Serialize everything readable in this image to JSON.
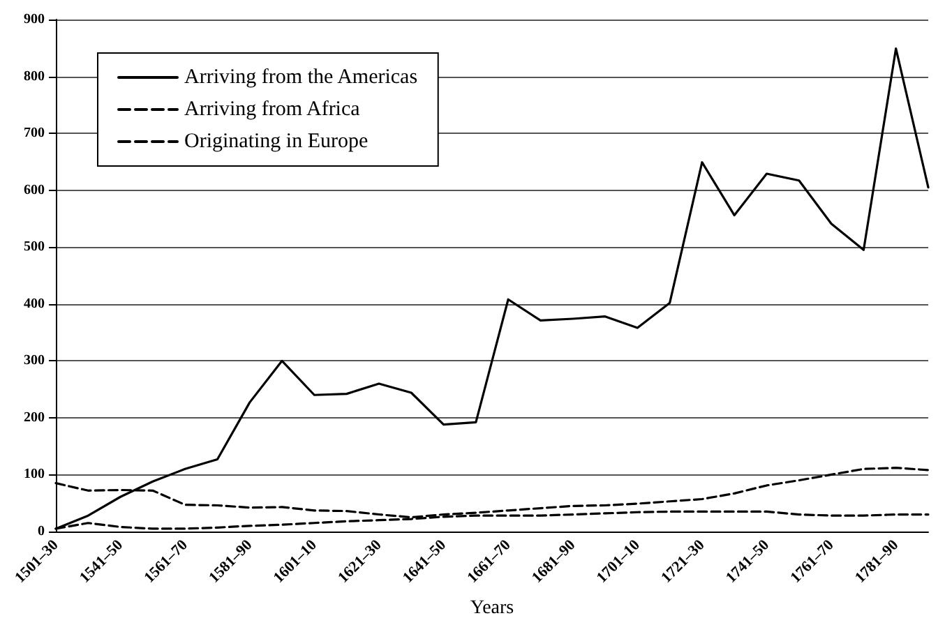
{
  "chart_data": {
    "type": "line",
    "xlabel": "Years",
    "categories": [
      "1501–30",
      null,
      "1541–50",
      null,
      "1561–70",
      null,
      "1581–90",
      null,
      "1601–10",
      null,
      "1621–30",
      null,
      "1641–50",
      null,
      "1661–70",
      null,
      "1681–90",
      null,
      "1701–10",
      null,
      "1721–30",
      null,
      "1741–50",
      null,
      "1761–70",
      null,
      "1781–90",
      null
    ],
    "series": [
      {
        "name": "Arriving from the Americas",
        "color": "#000000",
        "line_style": "solid",
        "values": [
          5,
          28,
          61,
          88,
          110,
          127,
          227,
          300,
          240,
          242,
          260,
          244,
          188,
          192,
          408,
          371,
          374,
          378,
          358,
          402,
          649,
          556,
          629,
          617,
          541,
          495,
          849,
          605
        ]
      },
      {
        "name": "Arriving from Africa",
        "color": "#000000",
        "line_style": "dashed",
        "values": [
          5,
          15,
          8,
          5,
          5,
          7,
          10,
          12,
          15,
          18,
          20,
          22,
          26,
          28,
          28,
          28,
          30,
          32,
          34,
          35,
          35,
          35,
          35,
          30,
          28,
          28,
          30,
          30
        ]
      },
      {
        "name": "Originating in Europe",
        "color": "#000000",
        "line_style": "dashed",
        "values": [
          85,
          72,
          73,
          72,
          47,
          46,
          42,
          43,
          37,
          36,
          30,
          25,
          30,
          33,
          37,
          41,
          45,
          46,
          49,
          53,
          57,
          67,
          81,
          90,
          100,
          110,
          112,
          108
        ]
      }
    ],
    "ylim": [
      0,
      900
    ],
    "yticks": [
      0,
      100,
      200,
      300,
      400,
      500,
      600,
      700,
      800,
      900
    ],
    "grid": "y",
    "legend": "top left",
    "marker": "none"
  }
}
